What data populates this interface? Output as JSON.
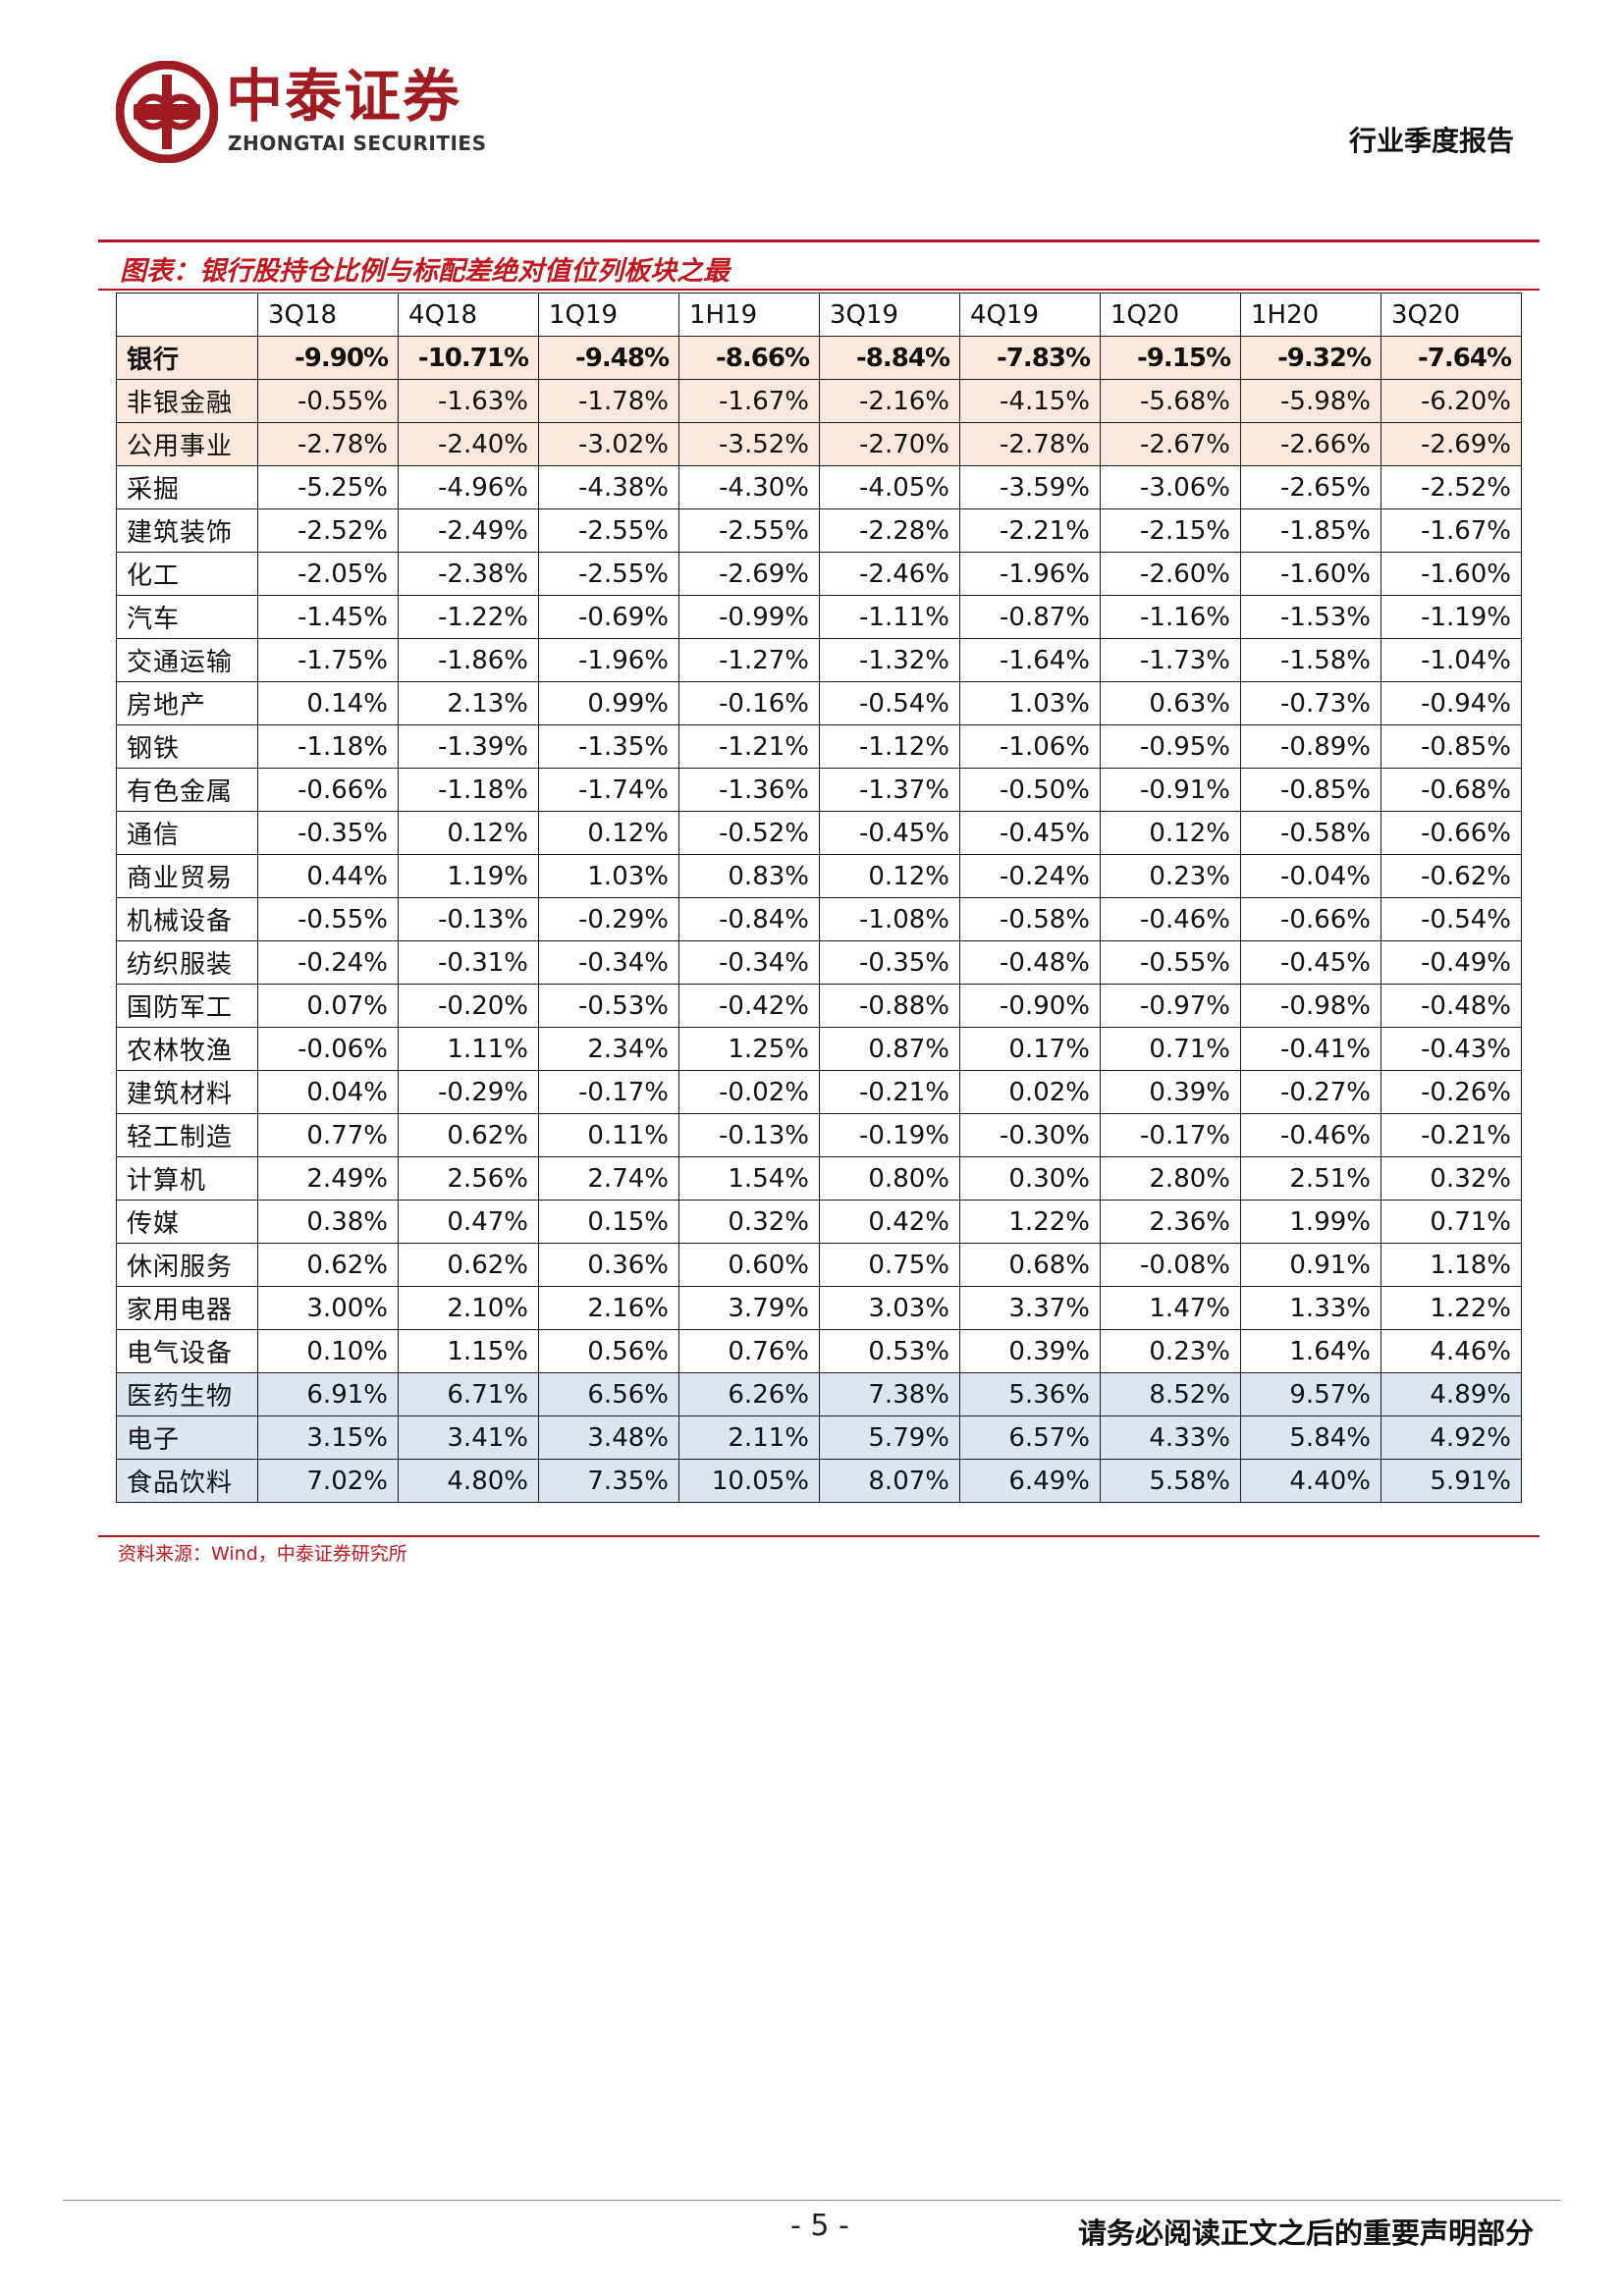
{
  "header": {
    "logo_cn": "中泰证券",
    "logo_en": "ZHONGTAI SECURITIES",
    "report_type": "行业季度报告"
  },
  "figure": {
    "title": "图表：银行股持仓比例与标配差绝对值位列板块之最",
    "source": "资料来源：Wind，中泰证券研究所"
  },
  "table": {
    "columns": [
      "",
      "3Q18",
      "4Q18",
      "1Q19",
      "1H19",
      "3Q19",
      "4Q19",
      "1Q20",
      "1H20",
      "3Q20"
    ],
    "rows": [
      {
        "label": "银行",
        "values": [
          "-9.90%",
          "-10.71%",
          "-9.48%",
          "-8.66%",
          "-8.84%",
          "-7.83%",
          "-9.15%",
          "-9.32%",
          "-7.64%"
        ]
      },
      {
        "label": "非银金融",
        "values": [
          "-0.55%",
          "-1.63%",
          "-1.78%",
          "-1.67%",
          "-2.16%",
          "-4.15%",
          "-5.68%",
          "-5.98%",
          "-6.20%"
        ]
      },
      {
        "label": "公用事业",
        "values": [
          "-2.78%",
          "-2.40%",
          "-3.02%",
          "-3.52%",
          "-2.70%",
          "-2.78%",
          "-2.67%",
          "-2.66%",
          "-2.69%"
        ]
      },
      {
        "label": "采掘",
        "values": [
          "-5.25%",
          "-4.96%",
          "-4.38%",
          "-4.30%",
          "-4.05%",
          "-3.59%",
          "-3.06%",
          "-2.65%",
          "-2.52%"
        ]
      },
      {
        "label": "建筑装饰",
        "values": [
          "-2.52%",
          "-2.49%",
          "-2.55%",
          "-2.55%",
          "-2.28%",
          "-2.21%",
          "-2.15%",
          "-1.85%",
          "-1.67%"
        ]
      },
      {
        "label": "化工",
        "values": [
          "-2.05%",
          "-2.38%",
          "-2.55%",
          "-2.69%",
          "-2.46%",
          "-1.96%",
          "-2.60%",
          "-1.60%",
          "-1.60%"
        ]
      },
      {
        "label": "汽车",
        "values": [
          "-1.45%",
          "-1.22%",
          "-0.69%",
          "-0.99%",
          "-1.11%",
          "-0.87%",
          "-1.16%",
          "-1.53%",
          "-1.19%"
        ]
      },
      {
        "label": "交通运输",
        "values": [
          "-1.75%",
          "-1.86%",
          "-1.96%",
          "-1.27%",
          "-1.32%",
          "-1.64%",
          "-1.73%",
          "-1.58%",
          "-1.04%"
        ]
      },
      {
        "label": "房地产",
        "values": [
          "0.14%",
          "2.13%",
          "0.99%",
          "-0.16%",
          "-0.54%",
          "1.03%",
          "0.63%",
          "-0.73%",
          "-0.94%"
        ]
      },
      {
        "label": "钢铁",
        "values": [
          "-1.18%",
          "-1.39%",
          "-1.35%",
          "-1.21%",
          "-1.12%",
          "-1.06%",
          "-0.95%",
          "-0.89%",
          "-0.85%"
        ]
      },
      {
        "label": "有色金属",
        "values": [
          "-0.66%",
          "-1.18%",
          "-1.74%",
          "-1.36%",
          "-1.37%",
          "-0.50%",
          "-0.91%",
          "-0.85%",
          "-0.68%"
        ]
      },
      {
        "label": "通信",
        "values": [
          "-0.35%",
          "0.12%",
          "0.12%",
          "-0.52%",
          "-0.45%",
          "-0.45%",
          "0.12%",
          "-0.58%",
          "-0.66%"
        ]
      },
      {
        "label": "商业贸易",
        "values": [
          "0.44%",
          "1.19%",
          "1.03%",
          "0.83%",
          "0.12%",
          "-0.24%",
          "0.23%",
          "-0.04%",
          "-0.62%"
        ]
      },
      {
        "label": "机械设备",
        "values": [
          "-0.55%",
          "-0.13%",
          "-0.29%",
          "-0.84%",
          "-1.08%",
          "-0.58%",
          "-0.46%",
          "-0.66%",
          "-0.54%"
        ]
      },
      {
        "label": "纺织服装",
        "values": [
          "-0.24%",
          "-0.31%",
          "-0.34%",
          "-0.34%",
          "-0.35%",
          "-0.48%",
          "-0.55%",
          "-0.45%",
          "-0.49%"
        ]
      },
      {
        "label": "国防军工",
        "values": [
          "0.07%",
          "-0.20%",
          "-0.53%",
          "-0.42%",
          "-0.88%",
          "-0.90%",
          "-0.97%",
          "-0.98%",
          "-0.48%"
        ]
      },
      {
        "label": "农林牧渔",
        "values": [
          "-0.06%",
          "1.11%",
          "2.34%",
          "1.25%",
          "0.87%",
          "0.17%",
          "0.71%",
          "-0.41%",
          "-0.43%"
        ]
      },
      {
        "label": "建筑材料",
        "values": [
          "0.04%",
          "-0.29%",
          "-0.17%",
          "-0.02%",
          "-0.21%",
          "0.02%",
          "0.39%",
          "-0.27%",
          "-0.26%"
        ]
      },
      {
        "label": "轻工制造",
        "values": [
          "0.77%",
          "0.62%",
          "0.11%",
          "-0.13%",
          "-0.19%",
          "-0.30%",
          "-0.17%",
          "-0.46%",
          "-0.21%"
        ]
      },
      {
        "label": "计算机",
        "values": [
          "2.49%",
          "2.56%",
          "2.74%",
          "1.54%",
          "0.80%",
          "0.30%",
          "2.80%",
          "2.51%",
          "0.32%"
        ]
      },
      {
        "label": "传媒",
        "values": [
          "0.38%",
          "0.47%",
          "0.15%",
          "0.32%",
          "0.42%",
          "1.22%",
          "2.36%",
          "1.99%",
          "0.71%"
        ]
      },
      {
        "label": "休闲服务",
        "values": [
          "0.62%",
          "0.62%",
          "0.36%",
          "0.60%",
          "0.75%",
          "0.68%",
          "-0.08%",
          "0.91%",
          "1.18%"
        ]
      },
      {
        "label": "家用电器",
        "values": [
          "3.00%",
          "2.10%",
          "2.16%",
          "3.79%",
          "3.03%",
          "3.37%",
          "1.47%",
          "1.33%",
          "1.22%"
        ]
      },
      {
        "label": "电气设备",
        "values": [
          "0.10%",
          "1.15%",
          "0.56%",
          "0.76%",
          "0.53%",
          "0.39%",
          "0.23%",
          "1.64%",
          "4.46%"
        ]
      },
      {
        "label": "医药生物",
        "values": [
          "6.91%",
          "6.71%",
          "6.56%",
          "6.26%",
          "7.38%",
          "5.36%",
          "8.52%",
          "9.57%",
          "4.89%"
        ]
      },
      {
        "label": "电子",
        "values": [
          "3.15%",
          "3.41%",
          "3.48%",
          "2.11%",
          "5.79%",
          "6.57%",
          "4.33%",
          "5.84%",
          "4.92%"
        ]
      },
      {
        "label": "食品饮料",
        "values": [
          "7.02%",
          "4.80%",
          "7.35%",
          "10.05%",
          "8.07%",
          "6.49%",
          "5.58%",
          "4.40%",
          "5.91%"
        ]
      }
    ],
    "highlight_colors": {
      "red": "#fbe8dc",
      "blue": "#dde5f1"
    }
  },
  "footer": {
    "page_number": "- 5 -",
    "disclaimer": "请务必阅读正文之后的重要声明部分"
  },
  "colors": {
    "brand_red": "#a01c23",
    "rule_red": "#b5161d"
  }
}
